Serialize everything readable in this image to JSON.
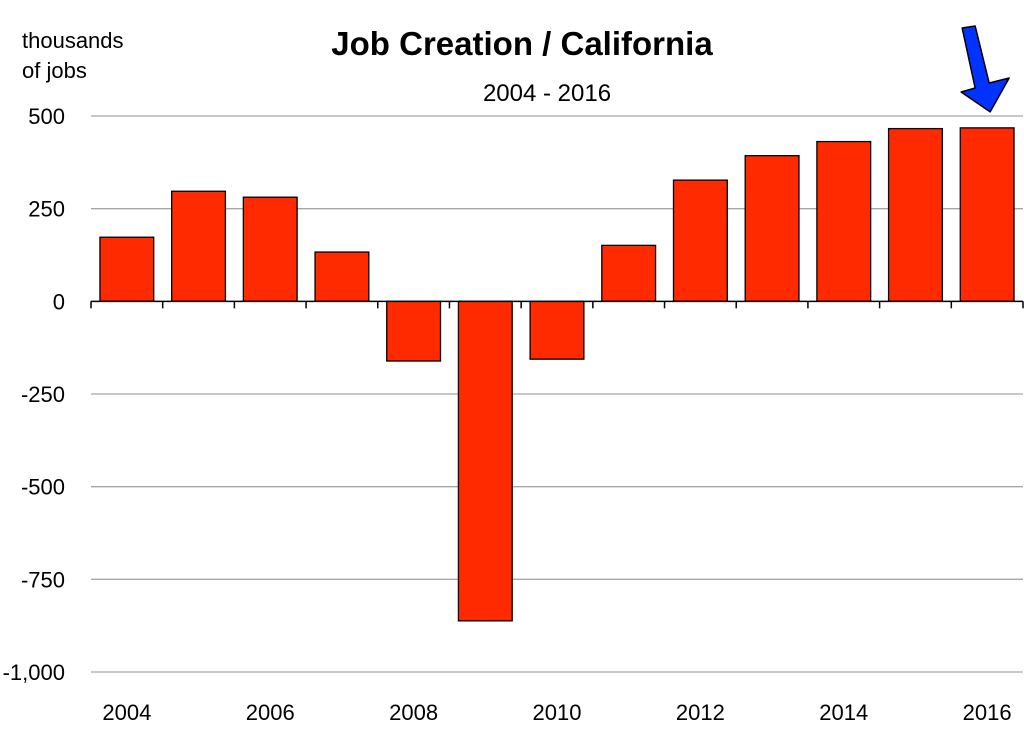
{
  "chart_data": {
    "type": "bar",
    "title": "Job Creation / California",
    "subtitle": "2004 - 2016",
    "ylabel_line1": "thousands",
    "ylabel_line2": "of jobs",
    "categories": [
      "2004",
      "2005",
      "2006",
      "2007",
      "2008",
      "2009",
      "2010",
      "2011",
      "2012",
      "2013",
      "2014",
      "2015",
      "2016"
    ],
    "values": [
      173,
      297,
      281,
      133,
      -161,
      -862,
      -156,
      151,
      327,
      393,
      431,
      466,
      468
    ],
    "ylim": [
      -1000,
      500
    ],
    "yticks": [
      500,
      250,
      0,
      -250,
      -500,
      -750,
      -1000
    ],
    "ytick_labels": [
      "500",
      "250",
      "0",
      "-250",
      "-500",
      "-750",
      "-1,000"
    ],
    "xtick_labels": [
      "2004",
      "",
      "2006",
      "",
      "2008",
      "",
      "2010",
      "",
      "2012",
      "",
      "2014",
      "",
      "2016"
    ],
    "grid": true,
    "bar_color": "#ff2a00",
    "annotation": {
      "type": "arrow",
      "points_to": "2016",
      "color": "#0033ff"
    }
  }
}
